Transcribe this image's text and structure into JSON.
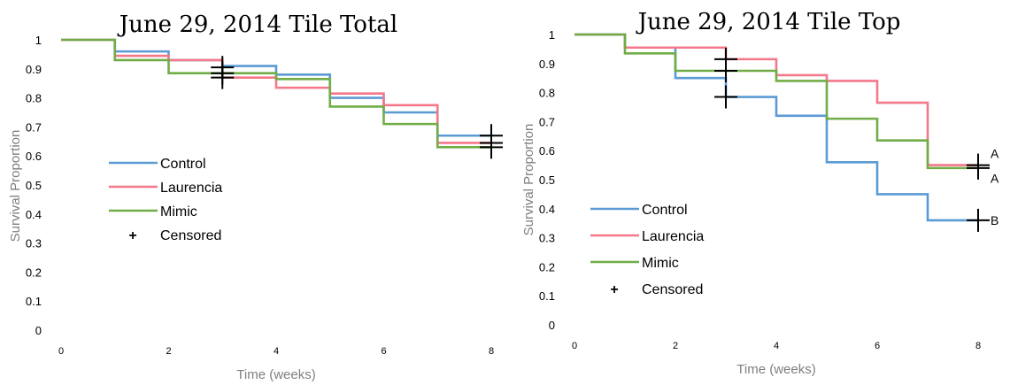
{
  "colors": {
    "control": "#5b9bd5",
    "laurencia": "#f4788a",
    "mimic": "#70ad47",
    "censored": "#000000",
    "axis_label": "#7f7f7f"
  },
  "legend": {
    "control": "Control",
    "laurencia": "Laurencia",
    "mimic": "Mimic",
    "censored": "Censored",
    "censored_symbol": "+"
  },
  "chart_data": [
    {
      "type": "line",
      "title": "June 29, 2014 Tile Total",
      "xlabel": "Time (weeks)",
      "ylabel": "Survival Proportion",
      "xlim": [
        0,
        8
      ],
      "ylim": [
        0,
        1
      ],
      "x_ticks": [
        "0",
        "2",
        "4",
        "6",
        "8"
      ],
      "y_ticks": [
        "0",
        "0.1",
        "0.2",
        "0.3",
        "0.4",
        "0.5",
        "0.6",
        "0.7",
        "0.8",
        "0.9",
        "1"
      ],
      "grid": false,
      "legend_position": "left",
      "series": [
        {
          "name": "Control",
          "color": "#5b9bd5",
          "x": [
            0,
            1,
            2,
            3,
            4,
            5,
            6,
            7,
            8
          ],
          "y": [
            1,
            0.96,
            0.93,
            0.91,
            0.88,
            0.8,
            0.75,
            0.67,
            0.67
          ]
        },
        {
          "name": "Laurencia",
          "color": "#f4788a",
          "x": [
            0,
            1,
            2,
            3,
            4,
            5,
            6,
            7,
            8
          ],
          "y": [
            1,
            0.945,
            0.93,
            0.87,
            0.835,
            0.815,
            0.775,
            0.645,
            0.645
          ]
        },
        {
          "name": "Mimic",
          "color": "#70ad47",
          "x": [
            0,
            1,
            2,
            3,
            4,
            5,
            6,
            7,
            8
          ],
          "y": [
            1,
            0.93,
            0.885,
            0.885,
            0.865,
            0.77,
            0.71,
            0.63,
            0.63
          ]
        }
      ],
      "censored": [
        {
          "x": 3,
          "y": 0.905
        },
        {
          "x": 3,
          "y": 0.885
        },
        {
          "x": 3,
          "y": 0.87
        },
        {
          "x": 8,
          "y": 0.67
        },
        {
          "x": 8,
          "y": 0.645
        },
        {
          "x": 8,
          "y": 0.63
        }
      ],
      "group_labels": []
    },
    {
      "type": "line",
      "title": "June 29, 2014 Tile Top",
      "xlabel": "Time (weeks)",
      "ylabel": "Survival Proportion",
      "xlim": [
        0,
        8
      ],
      "ylim": [
        0,
        1
      ],
      "x_ticks": [
        "0",
        "2",
        "4",
        "6",
        "8"
      ],
      "y_ticks": [
        "0",
        "0.1",
        "0.2",
        "0.3",
        "0.4",
        "0.5",
        "0.6",
        "0.7",
        "0.8",
        "0.9",
        "1"
      ],
      "grid": false,
      "legend_position": "left",
      "series": [
        {
          "name": "Control",
          "color": "#5b9bd5",
          "x": [
            0,
            1,
            2,
            3,
            4,
            5,
            6,
            7,
            8
          ],
          "y": [
            1,
            0.955,
            0.85,
            0.785,
            0.72,
            0.56,
            0.45,
            0.36,
            0.36
          ]
        },
        {
          "name": "Laurencia",
          "color": "#f4788a",
          "x": [
            0,
            1,
            2,
            3,
            4,
            5,
            6,
            7,
            8
          ],
          "y": [
            1,
            0.955,
            0.955,
            0.915,
            0.86,
            0.84,
            0.765,
            0.55,
            0.55
          ]
        },
        {
          "name": "Mimic",
          "color": "#70ad47",
          "x": [
            0,
            1,
            2,
            3,
            4,
            5,
            6,
            7,
            8
          ],
          "y": [
            1,
            0.935,
            0.875,
            0.875,
            0.84,
            0.71,
            0.635,
            0.54,
            0.54
          ]
        }
      ],
      "censored": [
        {
          "x": 3,
          "y": 0.915
        },
        {
          "x": 3,
          "y": 0.875
        },
        {
          "x": 3,
          "y": 0.785
        },
        {
          "x": 8,
          "y": 0.55
        },
        {
          "x": 8,
          "y": 0.54
        },
        {
          "x": 8,
          "y": 0.36
        }
      ],
      "group_labels": [
        {
          "text": "A",
          "x": 8,
          "y": 0.59
        },
        {
          "text": "A",
          "x": 8,
          "y": 0.505
        },
        {
          "text": "B",
          "x": 8,
          "y": 0.36
        }
      ]
    }
  ]
}
